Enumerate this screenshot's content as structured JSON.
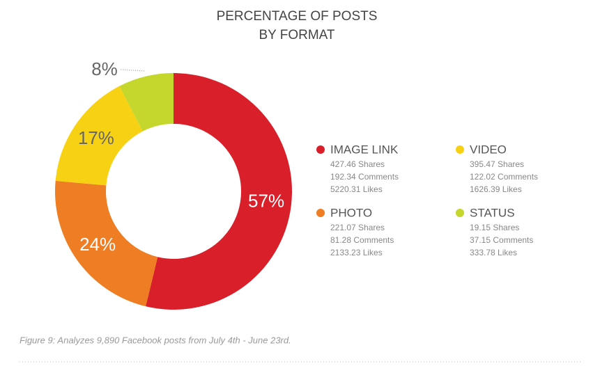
{
  "chart_data": {
    "type": "donut",
    "title": [
      "PERCENTAGE OF POSTS",
      "BY FORMAT"
    ],
    "categories": [
      "IMAGE LINK",
      "PHOTO",
      "VIDEO",
      "STATUS"
    ],
    "values": [
      57,
      24,
      17,
      8
    ],
    "value_labels": [
      "57%",
      "24%",
      "17%",
      "8%"
    ],
    "colors": [
      "#d81f2a",
      "#ee7d23",
      "#f7d214",
      "#c5d62d"
    ],
    "details": [
      [
        "427.46 Shares",
        "192.34 Comments",
        "5220.31 Likes"
      ],
      [
        "221.07 Shares",
        "81.28 Comments",
        "2133.23 Likes"
      ],
      [
        "395.47 Shares",
        "122.02 Comments",
        "1626.39 Likes"
      ],
      [
        "19.15 Shares",
        "37.15 Comments",
        "333.78 Likes"
      ]
    ],
    "caption": "Figure 9: Analyzes 9,890 Facebook posts from July 4th - June 23rd."
  }
}
